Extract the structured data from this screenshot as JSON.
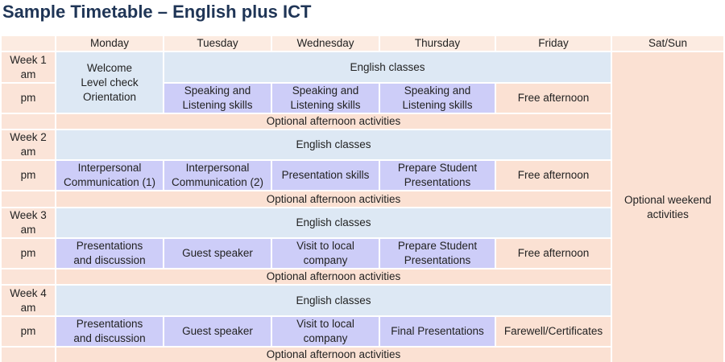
{
  "title": "Sample Timetable – English plus ICT",
  "days": [
    "Monday",
    "Tuesday",
    "Wednesday",
    "Thursday",
    "Friday",
    "Sat/Sun"
  ],
  "weekend": "Optional weekend activities",
  "colors": {
    "title": "#1f3556",
    "header": "#fcebe1",
    "am": "#dde8f4",
    "pm": "#cdcdf8",
    "peach": "#fbe1d3"
  },
  "weeks": [
    {
      "label": "Week 1\nam",
      "pm_label": "pm",
      "am": [
        {
          "text": "Welcome\nLevel check\nOrientation",
          "span": 1,
          "rowspan": 2,
          "kind": "am"
        },
        {
          "text": "English classes",
          "span": 4,
          "kind": "am"
        }
      ],
      "pm": [
        {
          "text": "Speaking and\nListening skills",
          "kind": "pm"
        },
        {
          "text": "Speaking and\nListening skills",
          "kind": "pm"
        },
        {
          "text": "Speaking and\nListening skills",
          "kind": "pm"
        },
        {
          "text": "Free afternoon",
          "kind": "pe"
        }
      ],
      "optional": "Optional afternoon activities"
    },
    {
      "label": "Week 2\nam",
      "pm_label": "pm",
      "am": [
        {
          "text": "English classes",
          "span": 5,
          "kind": "am"
        }
      ],
      "pm": [
        {
          "text": "Interpersonal\nCommunication (1)",
          "kind": "pm"
        },
        {
          "text": "Interpersonal\nCommunication (2)",
          "kind": "pm"
        },
        {
          "text": "Presentation skills",
          "kind": "pm"
        },
        {
          "text": "Prepare Student\nPresentations",
          "kind": "pm"
        },
        {
          "text": "Free afternoon",
          "kind": "pe"
        }
      ],
      "optional": "Optional afternoon activities"
    },
    {
      "label": "Week 3\nam",
      "pm_label": "pm",
      "am": [
        {
          "text": "English classes",
          "span": 5,
          "kind": "am"
        }
      ],
      "pm": [
        {
          "text": "Presentations\nand discussion",
          "kind": "pm"
        },
        {
          "text": "Guest speaker",
          "kind": "pm"
        },
        {
          "text": "Visit to local\ncompany",
          "kind": "pm"
        },
        {
          "text": "Prepare Student\nPresentations",
          "kind": "pm"
        },
        {
          "text": "Free afternoon",
          "kind": "pe"
        }
      ],
      "optional": "Optional afternoon activities"
    },
    {
      "label": "Week 4\nam",
      "pm_label": "pm",
      "am": [
        {
          "text": "English classes",
          "span": 5,
          "kind": "am"
        }
      ],
      "pm": [
        {
          "text": "Presentations\nand discussion",
          "kind": "pm"
        },
        {
          "text": "Guest speaker",
          "kind": "pm"
        },
        {
          "text": "Visit to local\ncompany",
          "kind": "pm"
        },
        {
          "text": "Final Presentations",
          "kind": "pm"
        },
        {
          "text": "Farewell/Certificates",
          "kind": "pe"
        }
      ],
      "optional": "Optional afternoon activities"
    }
  ]
}
